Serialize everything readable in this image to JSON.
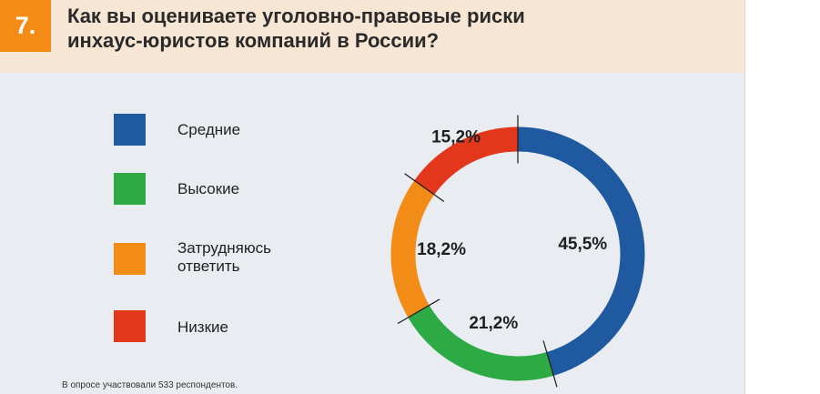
{
  "header": {
    "number": "7.",
    "title_lines": [
      "Как вы оцениваете уголовно-правовые риски",
      "инхаус-юристов компаний в России?"
    ]
  },
  "legend": [
    {
      "lines": [
        "Средние"
      ],
      "color": "#1f5aa0"
    },
    {
      "lines": [
        "Высокие"
      ],
      "color": "#2eaa45"
    },
    {
      "lines": [
        "Затрудняюсь",
        "ответить"
      ],
      "color": "#f28c16"
    },
    {
      "lines": [
        "Низкие"
      ],
      "color": "#e3371c"
    }
  ],
  "chart_data": {
    "type": "pie",
    "variant": "donut",
    "title": "Как вы оцениваете уголовно-правовые риски инхаус-юристов компаний в России?",
    "categories": [
      "Средние",
      "Высокие",
      "Затрудняюсь ответить",
      "Низкие"
    ],
    "values": [
      45.5,
      21.2,
      18.2,
      15.2
    ],
    "labels": [
      "45,5%",
      "21,2%",
      "18,2%",
      "15,2%"
    ],
    "colors": [
      "#1f5aa0",
      "#2eaa45",
      "#f28c16",
      "#e3371c"
    ],
    "unit": "%"
  },
  "footnote": "В опросе участвовали 533 респондентов."
}
